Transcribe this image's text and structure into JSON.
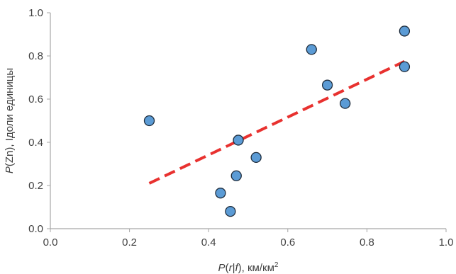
{
  "chart_data": {
    "type": "scatter",
    "title": "",
    "xlabel_parts": [
      {
        "text": "P",
        "style": "italic",
        "sup": false
      },
      {
        "text": "(",
        "style": "normal",
        "sup": false
      },
      {
        "text": "r",
        "style": "italic",
        "sup": false
      },
      {
        "text": "|",
        "style": "normal",
        "sup": false
      },
      {
        "text": "f",
        "style": "italic",
        "sup": false
      },
      {
        "text": "), км/км",
        "style": "normal",
        "sup": false
      },
      {
        "text": "2",
        "style": "normal",
        "sup": true
      }
    ],
    "ylabel_parts": [
      {
        "text": "P",
        "style": "italic"
      },
      {
        "text": "(Zn), Iдоли единицы",
        "style": "normal"
      }
    ],
    "xlim": [
      0.0,
      1.0
    ],
    "ylim": [
      0.0,
      1.0
    ],
    "x_ticks": [
      "0.0",
      "0.2",
      "0.4",
      "0.6",
      "0.8",
      "1.0"
    ],
    "y_ticks": [
      "0.0",
      "0.2",
      "0.4",
      "0.6",
      "0.8",
      "1.0"
    ],
    "grid": false,
    "points": [
      {
        "x": 0.25,
        "y": 0.5
      },
      {
        "x": 0.43,
        "y": 0.165
      },
      {
        "x": 0.455,
        "y": 0.08
      },
      {
        "x": 0.47,
        "y": 0.245
      },
      {
        "x": 0.475,
        "y": 0.41
      },
      {
        "x": 0.52,
        "y": 0.33
      },
      {
        "x": 0.66,
        "y": 0.83
      },
      {
        "x": 0.7,
        "y": 0.665
      },
      {
        "x": 0.745,
        "y": 0.58
      },
      {
        "x": 0.895,
        "y": 0.915
      },
      {
        "x": 0.895,
        "y": 0.75
      }
    ],
    "trendline": {
      "x": [
        0.25,
        0.895
      ],
      "y": [
        0.21,
        0.775
      ]
    },
    "colors": {
      "marker_fill": "#5b9bd5",
      "marker_stroke": "#1f2d3d",
      "trendline": "#e8312f",
      "axis": "#a6a6a6"
    }
  }
}
